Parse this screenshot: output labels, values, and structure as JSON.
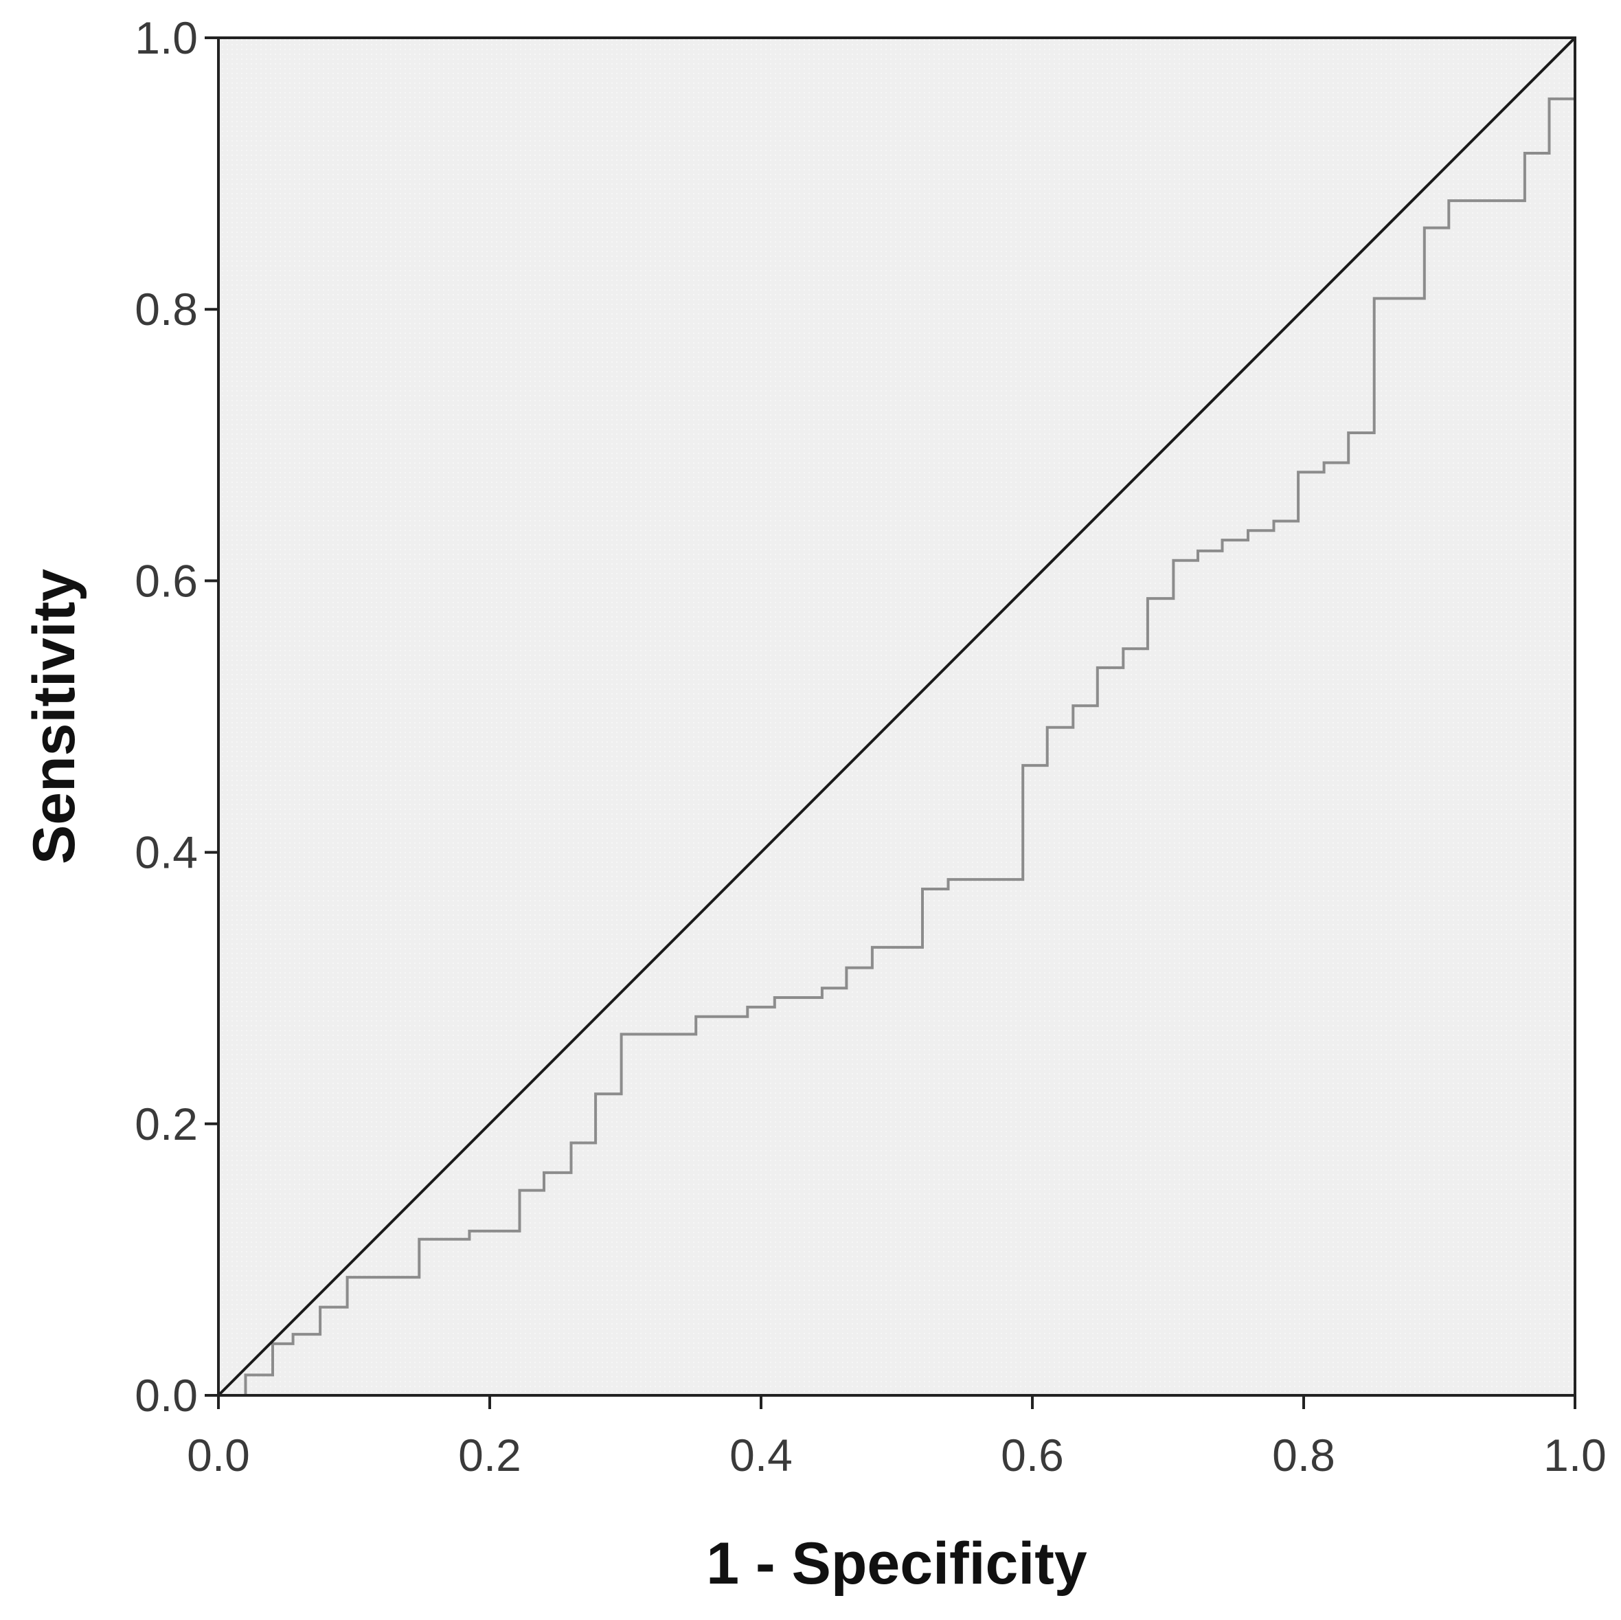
{
  "chart_data": {
    "type": "line",
    "xlabel": "1 - Specificity",
    "ylabel": "Sensitivity",
    "xlim": [
      0.0,
      1.0
    ],
    "ylim": [
      0.0,
      1.0
    ],
    "x_ticks": [
      "0.0",
      "0.2",
      "0.4",
      "0.6",
      "0.8",
      "1.0"
    ],
    "y_ticks": [
      "0.0",
      "0.2",
      "0.4",
      "0.6",
      "0.8",
      "1.0"
    ],
    "grid": false,
    "colors": {
      "plot_background": "#efefef",
      "roc_curve": "#8c8c8c",
      "reference_line": "#1a1a1a",
      "frame": "#222222"
    },
    "series": [
      {
        "kind": "step",
        "x": [
          0.0,
          0.02,
          0.02,
          0.04,
          0.04,
          0.055,
          0.055,
          0.075,
          0.075,
          0.095,
          0.095,
          0.148,
          0.148,
          0.185,
          0.185,
          0.222,
          0.222,
          0.24,
          0.24,
          0.26,
          0.26,
          0.278,
          0.278,
          0.297,
          0.297,
          0.352,
          0.352,
          0.39,
          0.39,
          0.41,
          0.41,
          0.445,
          0.445,
          0.463,
          0.463,
          0.482,
          0.482,
          0.519,
          0.519,
          0.538,
          0.538,
          0.593,
          0.593,
          0.611,
          0.611,
          0.63,
          0.63,
          0.648,
          0.648,
          0.667,
          0.667,
          0.685,
          0.685,
          0.704,
          0.704,
          0.722,
          0.722,
          0.74,
          0.74,
          0.759,
          0.759,
          0.778,
          0.778,
          0.796,
          0.796,
          0.815,
          0.815,
          0.833,
          0.833,
          0.852,
          0.852,
          0.889,
          0.889,
          0.907,
          0.907,
          0.963,
          0.963,
          0.981,
          0.981,
          1.0
        ],
        "y": [
          0.0,
          0.0,
          0.015,
          0.015,
          0.038,
          0.038,
          0.045,
          0.045,
          0.065,
          0.065,
          0.087,
          0.087,
          0.115,
          0.115,
          0.121,
          0.121,
          0.151,
          0.151,
          0.164,
          0.164,
          0.186,
          0.186,
          0.222,
          0.222,
          0.266,
          0.266,
          0.279,
          0.279,
          0.286,
          0.286,
          0.293,
          0.293,
          0.3,
          0.3,
          0.315,
          0.315,
          0.33,
          0.33,
          0.373,
          0.373,
          0.38,
          0.38,
          0.464,
          0.464,
          0.492,
          0.492,
          0.508,
          0.508,
          0.536,
          0.536,
          0.55,
          0.55,
          0.587,
          0.587,
          0.615,
          0.615,
          0.622,
          0.622,
          0.63,
          0.63,
          0.637,
          0.637,
          0.644,
          0.644,
          0.68,
          0.68,
          0.687,
          0.687,
          0.709,
          0.709,
          0.808,
          0.808,
          0.86,
          0.86,
          0.88,
          0.88,
          0.915,
          0.915,
          0.955,
          0.955
        ]
      },
      {
        "kind": "reference",
        "x": [
          0.0,
          1.0
        ],
        "y": [
          0.0,
          1.0
        ]
      }
    ]
  }
}
